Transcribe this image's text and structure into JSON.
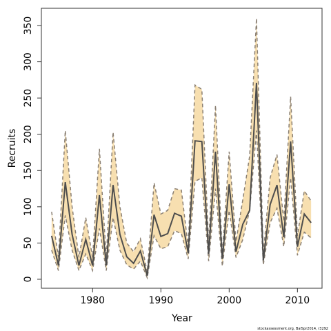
{
  "chart_data": {
    "type": "line",
    "xlabel": "Year",
    "ylabel": "Recruits",
    "footnote": "stockassessment.org, BalSpr2014, r3292",
    "x": [
      1974,
      1975,
      1976,
      1977,
      1978,
      1979,
      1980,
      1981,
      1982,
      1983,
      1984,
      1985,
      1986,
      1987,
      1988,
      1989,
      1990,
      1991,
      1992,
      1993,
      1994,
      1995,
      1996,
      1997,
      1998,
      1999,
      2000,
      2001,
      2002,
      2003,
      2004,
      2005,
      2006,
      2007,
      2008,
      2009,
      2010,
      2011,
      2012
    ],
    "values": [
      60,
      19,
      134,
      62,
      19,
      55,
      19,
      116,
      19,
      130,
      62,
      31,
      22,
      39,
      5,
      89,
      59,
      63,
      91,
      87,
      36,
      191,
      190,
      35,
      176,
      28,
      131,
      38,
      76,
      95,
      271,
      26,
      103,
      130,
      58,
      190,
      45,
      90,
      78
    ],
    "upper": [
      93,
      30,
      205,
      100,
      30,
      85,
      30,
      180,
      30,
      203,
      100,
      50,
      38,
      56,
      10,
      133,
      90,
      95,
      125,
      123,
      45,
      268,
      262,
      50,
      240,
      35,
      176,
      52,
      110,
      170,
      360,
      35,
      140,
      172,
      80,
      252,
      60,
      122,
      108
    ],
    "lower": [
      40,
      12,
      88,
      40,
      12,
      35,
      12,
      70,
      12,
      85,
      40,
      20,
      14,
      25,
      2,
      60,
      42,
      45,
      67,
      63,
      28,
      135,
      140,
      25,
      125,
      18,
      95,
      30,
      55,
      95,
      205,
      20,
      78,
      98,
      45,
      140,
      33,
      65,
      57
    ],
    "color": "#4d4d4d",
    "band_color": "#f7dfb0",
    "bound_color": "#8a7f72",
    "xlim": [
      1972.5,
      2013.6
    ],
    "ylim": [
      -12.4,
      373.8
    ],
    "xticks": [
      1980,
      1990,
      2000,
      2010
    ],
    "yticks": [
      0,
      50,
      100,
      150,
      200,
      250,
      300,
      350
    ]
  }
}
